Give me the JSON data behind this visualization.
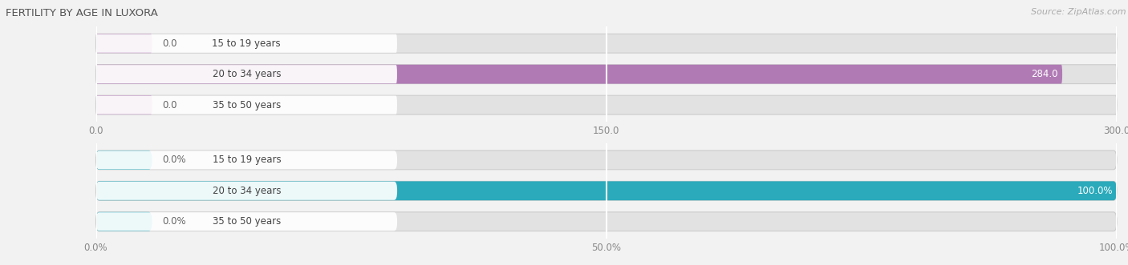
{
  "title": "FERTILITY BY AGE IN LUXORA",
  "source": "Source: ZipAtlas.com",
  "title_color": "#555555",
  "background_color": "#f2f2f2",
  "bar_background_color": "#e2e2e2",
  "top_chart": {
    "categories": [
      "15 to 19 years",
      "20 to 34 years",
      "35 to 50 years"
    ],
    "values": [
      0.0,
      284.0,
      0.0
    ],
    "bar_color": "#b07ab5",
    "xlim": [
      0,
      300
    ],
    "xticks": [
      0.0,
      150.0,
      300.0
    ],
    "xtick_labels": [
      "0.0",
      "150.0",
      "300.0"
    ]
  },
  "bottom_chart": {
    "categories": [
      "15 to 19 years",
      "20 to 34 years",
      "35 to 50 years"
    ],
    "values": [
      0.0,
      100.0,
      0.0
    ],
    "bar_color": "#2aaabb",
    "xlim": [
      0,
      100
    ],
    "xticks": [
      0.0,
      50.0,
      100.0
    ],
    "xtick_labels": [
      "0.0%",
      "50.0%",
      "100.0%"
    ]
  }
}
